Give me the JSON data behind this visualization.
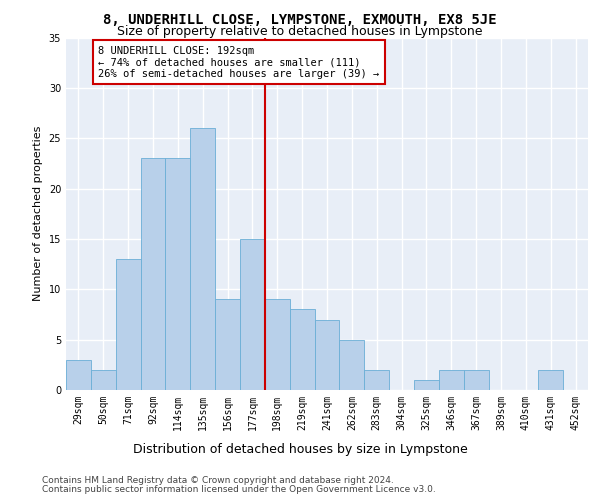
{
  "title": "8, UNDERHILL CLOSE, LYMPSTONE, EXMOUTH, EX8 5JE",
  "subtitle": "Size of property relative to detached houses in Lympstone",
  "xlabel": "Distribution of detached houses by size in Lympstone",
  "ylabel": "Number of detached properties",
  "categories": [
    "29sqm",
    "50sqm",
    "71sqm",
    "92sqm",
    "114sqm",
    "135sqm",
    "156sqm",
    "177sqm",
    "198sqm",
    "219sqm",
    "241sqm",
    "262sqm",
    "283sqm",
    "304sqm",
    "325sqm",
    "346sqm",
    "367sqm",
    "389sqm",
    "410sqm",
    "431sqm",
    "452sqm"
  ],
  "values": [
    3,
    2,
    13,
    23,
    23,
    26,
    9,
    15,
    9,
    8,
    7,
    5,
    2,
    0,
    1,
    2,
    2,
    0,
    0,
    2,
    0
  ],
  "bar_color": "#b8d0ea",
  "bar_edge_color": "#6aaed6",
  "vline_color": "#cc0000",
  "annotation_text": "8 UNDERHILL CLOSE: 192sqm\n← 74% of detached houses are smaller (111)\n26% of semi-detached houses are larger (39) →",
  "annotation_box_color": "#ffffff",
  "annotation_box_edge_color": "#cc0000",
  "ylim": [
    0,
    35
  ],
  "yticks": [
    0,
    5,
    10,
    15,
    20,
    25,
    30,
    35
  ],
  "background_color": "#e8eef7",
  "grid_color": "#ffffff",
  "footer_line1": "Contains HM Land Registry data © Crown copyright and database right 2024.",
  "footer_line2": "Contains public sector information licensed under the Open Government Licence v3.0.",
  "title_fontsize": 10,
  "subtitle_fontsize": 9,
  "xlabel_fontsize": 9,
  "ylabel_fontsize": 8,
  "tick_fontsize": 7,
  "annotation_fontsize": 7.5,
  "footer_fontsize": 6.5
}
